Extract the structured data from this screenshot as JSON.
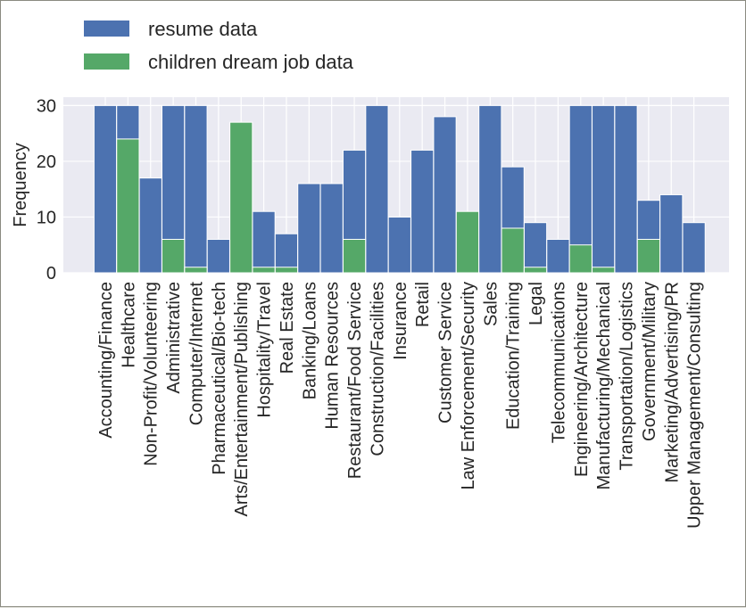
{
  "chart_data": {
    "type": "bar",
    "title": "",
    "xlabel": "",
    "ylabel": "Frequency",
    "ylim": [
      0,
      31.5
    ],
    "yticks": [
      0,
      10,
      20,
      30
    ],
    "grid": true,
    "legend_position": "top-left",
    "categories": [
      "Accounting/Finance",
      "Healthcare",
      "Non-Profit/Volunteering",
      "Administrative",
      "Computer/Internet",
      "Pharmaceutical/Bio-tech",
      "Arts/Entertainment/Publishing",
      "Hospitality/Travel",
      "Real Estate",
      "Banking/Loans",
      "Human Resources",
      "Restaurant/Food Service",
      "Construction/Facilities",
      "Insurance",
      "Retail",
      "Customer Service",
      "Law Enforcement/Security",
      "Sales",
      "Education/Training",
      "Legal",
      "Telecommunications",
      "Engineering/Architecture",
      "Manufacturing/Mechanical",
      "Transportation/Logistics",
      "Government/Military",
      "Marketing/Advertising/PR",
      "Upper Management/Consulting"
    ],
    "series": [
      {
        "name": "resume data",
        "color": "#4c72b0",
        "values": [
          30,
          30,
          17,
          30,
          30,
          6,
          0,
          11,
          7,
          16,
          16,
          22,
          30,
          10,
          22,
          28,
          0,
          30,
          19,
          9,
          6,
          30,
          30,
          30,
          13,
          14,
          9
        ]
      },
      {
        "name": "children dream job data",
        "color": "#55a868",
        "values": [
          0,
          24,
          0,
          6,
          1,
          0,
          27,
          1,
          1,
          0,
          0,
          6,
          0,
          0,
          0,
          0,
          11,
          0,
          8,
          1,
          0,
          5,
          1,
          0,
          6,
          0,
          0
        ]
      }
    ]
  },
  "colors": {
    "plot_background": "#eaeaf2",
    "grid": "#ffffff",
    "text": "#262626"
  }
}
